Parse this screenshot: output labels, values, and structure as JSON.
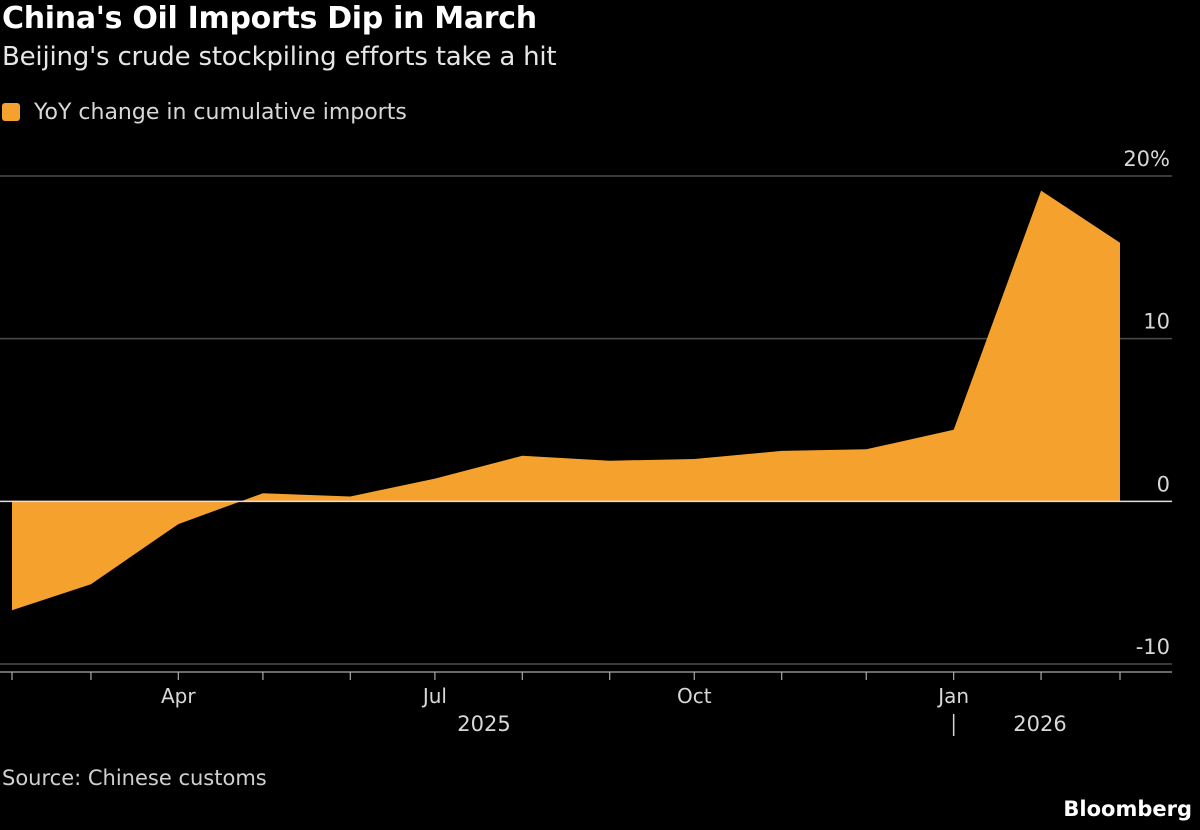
{
  "chart_data": {
    "type": "area",
    "title": "China's Oil Imports Dip in March",
    "subtitle": "Beijing's crude stockpiling efforts take a hit",
    "legend": {
      "label": "YoY change in cumulative imports",
      "placement": "top-left"
    },
    "series": [
      {
        "name": "YoY change in cumulative imports",
        "color": "#f5a12e",
        "points": [
          {
            "x": "2025-02-01",
            "y": -6.7
          },
          {
            "x": "2025-03-01",
            "y": -5.1
          },
          {
            "x": "2025-04-01",
            "y": -1.4
          },
          {
            "x": "2025-05-01",
            "y": 0.5
          },
          {
            "x": "2025-06-01",
            "y": 0.3
          },
          {
            "x": "2025-07-01",
            "y": 1.4
          },
          {
            "x": "2025-08-01",
            "y": 2.8
          },
          {
            "x": "2025-09-01",
            "y": 2.5
          },
          {
            "x": "2025-10-01",
            "y": 2.6
          },
          {
            "x": "2025-11-01",
            "y": 3.1
          },
          {
            "x": "2025-12-01",
            "y": 3.2
          },
          {
            "x": "2026-01-01",
            "y": 4.4
          },
          {
            "x": "2026-02-01",
            "y": 19.1
          },
          {
            "x": "2026-03-01",
            "y": 15.9
          }
        ]
      }
    ],
    "y_axis": {
      "ylim": [
        -10,
        20
      ],
      "ticks": [
        {
          "value": 20,
          "label": "20%"
        },
        {
          "value": 10,
          "label": "10"
        },
        {
          "value": 0,
          "label": "0"
        },
        {
          "value": -10,
          "label": "-10"
        }
      ],
      "position": "right",
      "grid": true
    },
    "x_axis": {
      "range": [
        "2025-02-01",
        "2026-03-01"
      ],
      "month_labels": [
        {
          "x": "2025-04-01",
          "label": "Apr"
        },
        {
          "x": "2025-07-01",
          "label": "Jul"
        },
        {
          "x": "2025-10-01",
          "label": "Oct"
        },
        {
          "x": "2026-01-01",
          "label": "Jan"
        }
      ],
      "year_labels": [
        {
          "label": "2025"
        },
        {
          "label": "2026"
        }
      ]
    },
    "source": "Source: Chinese customs",
    "brand": "Bloomberg",
    "colors": {
      "background": "#000000",
      "area": "#f5a12e",
      "grid": "#4d4d4d",
      "zero_line": "#e0e0e0",
      "text": "#ffffff"
    }
  }
}
